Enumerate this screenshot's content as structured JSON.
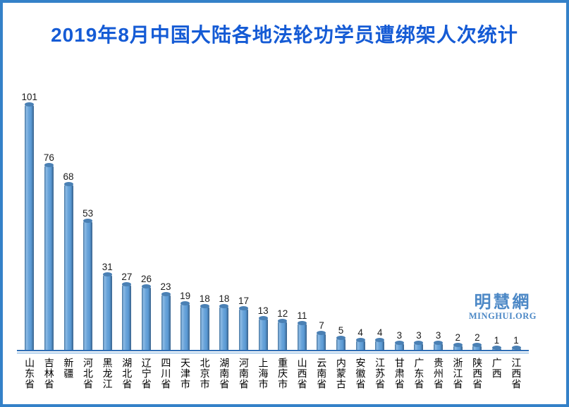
{
  "page": {
    "title": "2019年8月中国大陆各地法轮功学员遭绑架人次统计"
  },
  "watermark": {
    "cn": "明慧網",
    "en": "MINGHUI.ORG"
  },
  "colors": {
    "title": "#155bd5",
    "border": "#3481c8",
    "bar_main": "#5b9bd5",
    "bar_edge_dark": "#38618b",
    "bar_highlight": "#8cbbe6",
    "axis": "#2e6db5",
    "watermark": "#4c88c6",
    "value_label": "#1b1b1b"
  },
  "chart_data": {
    "type": "bar",
    "title": "2019年8月中国大陆各地法轮功学员遭绑架人次统计",
    "categories": [
      "山东省",
      "吉林省",
      "新疆",
      "河北省",
      "黑龙江",
      "湖北省",
      "辽宁省",
      "四川省",
      "天津市",
      "北京市",
      "湖南省",
      "河南省",
      "上海市",
      "重庆市",
      "山西省",
      "云南省",
      "内蒙古",
      "安徽省",
      "江苏省",
      "甘肃省",
      "广东省",
      "贵州省",
      "浙江省",
      "陕西省",
      "广西",
      "江西省"
    ],
    "values": [
      101,
      76,
      68,
      53,
      31,
      27,
      26,
      23,
      19,
      18,
      18,
      17,
      13,
      12,
      11,
      7,
      5,
      4,
      4,
      3,
      3,
      3,
      2,
      2,
      1,
      1
    ],
    "xlabel": "",
    "ylabel": "",
    "ylim": [
      0,
      105
    ],
    "grid": false,
    "legend": false,
    "data_labels": true,
    "bar_style": "cylinder",
    "bar_color": "#5b9bd5"
  }
}
